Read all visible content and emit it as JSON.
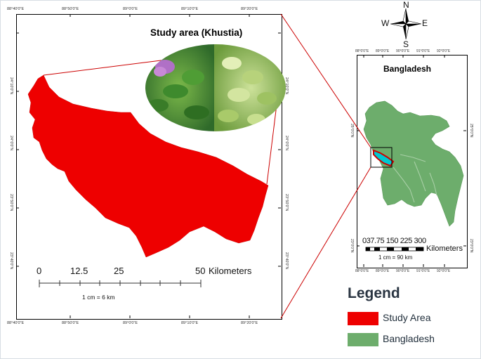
{
  "main_map": {
    "title": "Study area (Khustia)",
    "x_ticks": [
      "88°40'0\"E",
      "88°50'0\"E",
      "89°0'0\"E",
      "89°10'0\"E",
      "89°20'0\"E"
    ],
    "y_ticks": [
      "24°10'0\"N",
      "24°0'0\"N",
      "23°50'0\"N",
      "23°40'0\"N"
    ],
    "scale_bar": {
      "labels": [
        "0",
        "12.5",
        "25",
        "50"
      ],
      "unit": "Kilometers",
      "note": "1 cm = 6 km"
    },
    "fill_color": "#ee0000"
  },
  "inset_map": {
    "title": "Bangladesh",
    "x_ticks": [
      "88°0'0\"E",
      "89°0'0\"E",
      "90°0'0\"E",
      "91°0'0\"E",
      "92°0'0\"E"
    ],
    "y_ticks": [
      "25°0'0\"N",
      "23°0'0\"N"
    ],
    "scale_bar": {
      "labels": "037.75 150 225 300",
      "unit": "Kilometers",
      "note": "1 cm = 90 km"
    },
    "fill_color": "#6dad6c"
  },
  "compass": {
    "n": "N",
    "s": "S",
    "e": "E",
    "w": "W"
  },
  "photo": {
    "icon": "water-hyacinth-photo"
  },
  "legend": {
    "title": "Legend",
    "items": [
      {
        "label": "Study Area",
        "color": "#ee0000"
      },
      {
        "label": "Bangladesh",
        "color": "#6dad6c"
      }
    ]
  }
}
